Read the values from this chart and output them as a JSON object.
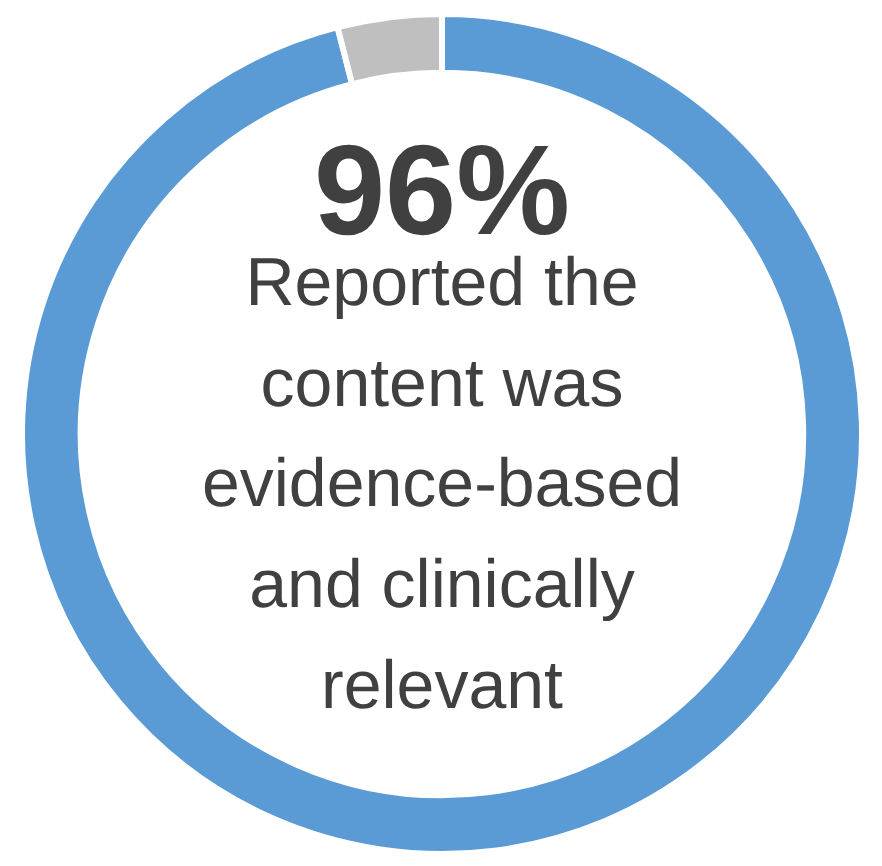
{
  "chart_data": {
    "type": "donut",
    "categories": [
      null,
      null
    ],
    "values": [
      96,
      4
    ],
    "colors": [
      "#5b9bd5",
      "#bfbfbf"
    ],
    "annotations": [
      "96%",
      "Reported the content was evidence-based and clinically relevant"
    ]
  }
}
